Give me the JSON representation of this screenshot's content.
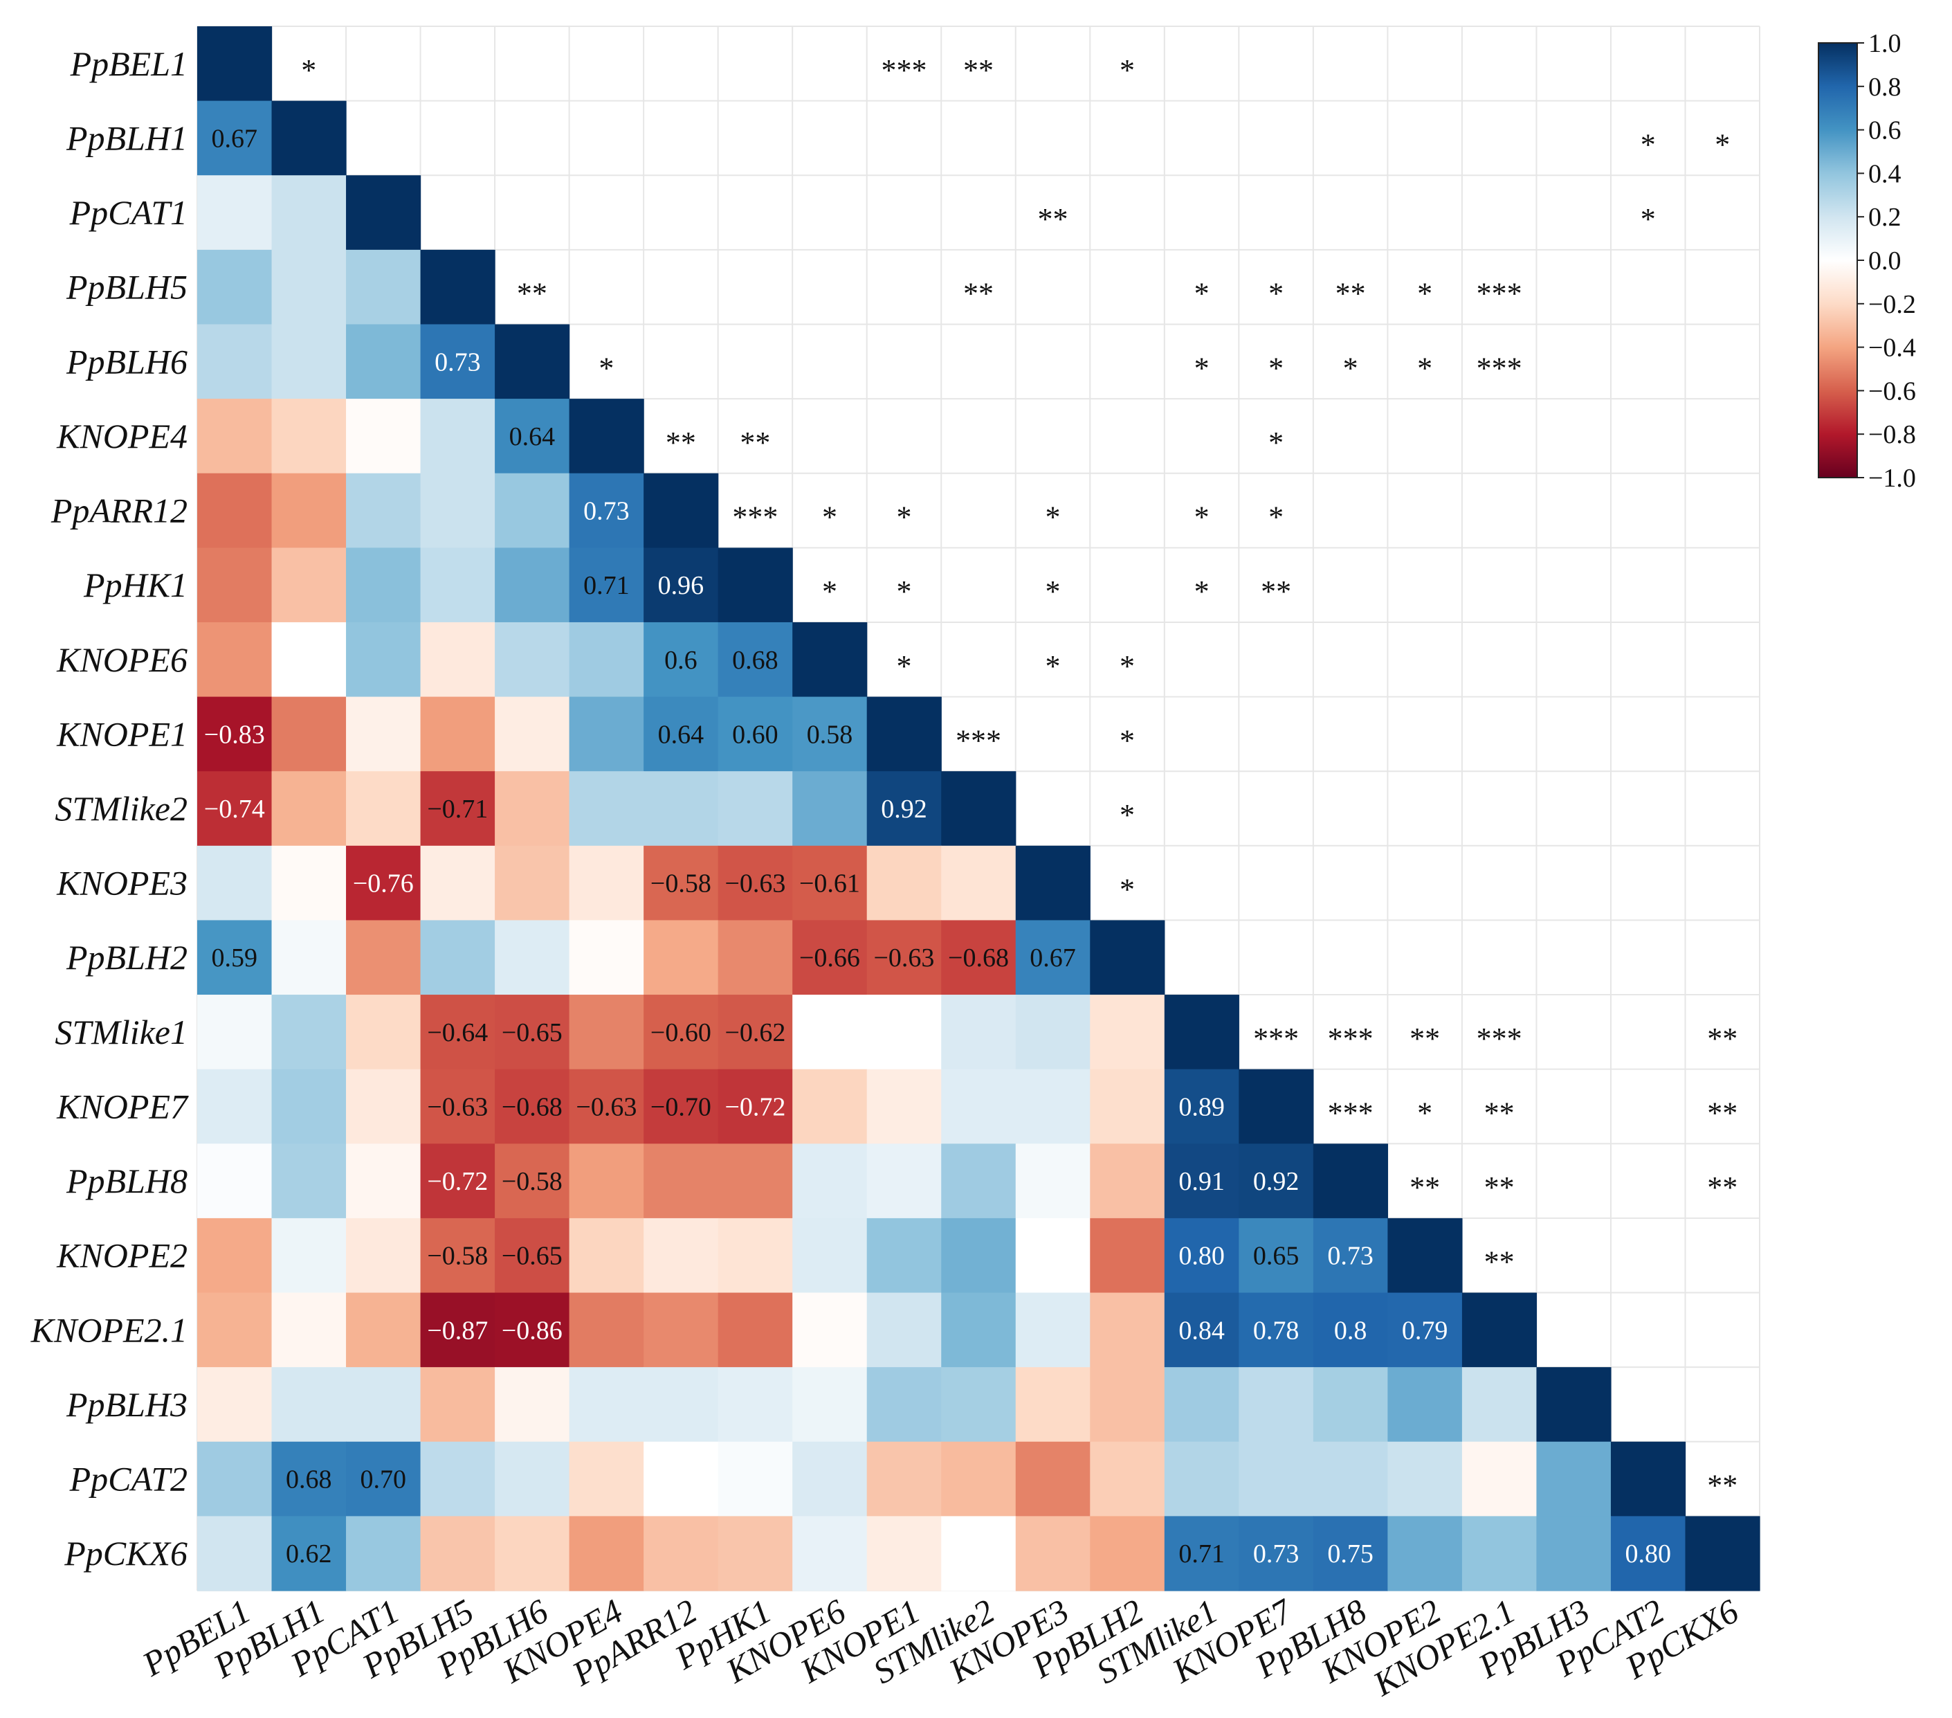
{
  "chart_data": {
    "type": "heatmap",
    "title": "",
    "xlabel": "",
    "ylabel": "",
    "labels": [
      "PpBEL1",
      "PpBLH1",
      "PpCAT1",
      "PpBLH5",
      "PpBLH6",
      "KNOPE4",
      "PpARR12",
      "PpHK1",
      "KNOPE6",
      "KNOPE1",
      "STMlike2",
      "KNOPE3",
      "PpBLH2",
      "STMlike1",
      "KNOPE7",
      "PpBLH8",
      "KNOPE2",
      "KNOPE2.1",
      "PpBLH3",
      "PpCAT2",
      "PpCKX6"
    ],
    "lower_triangle_values": [
      [
        1
      ],
      [
        0.67,
        1
      ],
      [
        0.12,
        0.22,
        1
      ],
      [
        0.38,
        0.22,
        0.33,
        1
      ],
      [
        0.28,
        0.22,
        0.45,
        0.73,
        1
      ],
      [
        -0.32,
        -0.22,
        -0.02,
        0.22,
        0.64,
        1
      ],
      [
        -0.55,
        -0.42,
        0.3,
        0.22,
        0.38,
        0.73,
        1
      ],
      [
        -0.52,
        -0.3,
        0.42,
        0.25,
        0.5,
        0.71,
        0.96,
        1
      ],
      [
        -0.45,
        0.0,
        0.4,
        -0.12,
        0.28,
        0.36,
        0.6,
        0.68,
        1
      ],
      [
        -0.83,
        -0.52,
        -0.08,
        -0.42,
        -0.1,
        0.5,
        0.64,
        0.6,
        0.58,
        1
      ],
      [
        -0.74,
        -0.35,
        -0.2,
        -0.71,
        -0.3,
        0.3,
        0.3,
        0.28,
        0.5,
        0.92,
        1
      ],
      [
        0.18,
        -0.03,
        -0.76,
        -0.1,
        -0.28,
        -0.12,
        -0.58,
        -0.63,
        -0.61,
        -0.22,
        -0.15,
        1
      ],
      [
        0.59,
        0.05,
        -0.46,
        0.35,
        0.15,
        -0.02,
        -0.38,
        -0.48,
        -0.66,
        -0.63,
        -0.68,
        0.67,
        1
      ],
      [
        0.05,
        0.32,
        -0.2,
        -0.64,
        -0.65,
        -0.5,
        -0.6,
        -0.62,
        0.0,
        0.0,
        0.16,
        0.2,
        -0.15,
        1
      ],
      [
        0.15,
        0.35,
        -0.12,
        -0.63,
        -0.68,
        -0.63,
        -0.7,
        -0.72,
        -0.22,
        -0.1,
        0.14,
        0.14,
        -0.18,
        0.89,
        1
      ],
      [
        0.02,
        0.33,
        -0.05,
        -0.72,
        -0.58,
        -0.42,
        -0.5,
        -0.5,
        0.14,
        0.1,
        0.36,
        0.05,
        -0.3,
        0.91,
        0.92,
        1
      ],
      [
        -0.38,
        0.08,
        -0.12,
        -0.58,
        -0.65,
        -0.22,
        -0.12,
        -0.15,
        0.15,
        0.4,
        0.48,
        0.0,
        -0.55,
        0.8,
        0.65,
        0.73,
        1
      ],
      [
        -0.35,
        -0.05,
        -0.35,
        -0.87,
        -0.86,
        -0.52,
        -0.48,
        -0.55,
        -0.02,
        0.2,
        0.45,
        0.15,
        -0.3,
        0.84,
        0.78,
        0.8,
        0.79,
        1
      ],
      [
        -0.1,
        0.18,
        0.18,
        -0.32,
        -0.06,
        0.15,
        0.15,
        0.12,
        0.08,
        0.36,
        0.34,
        -0.2,
        -0.3,
        0.36,
        0.26,
        0.34,
        0.5,
        0.22,
        1
      ],
      [
        0.36,
        0.68,
        0.7,
        0.26,
        0.18,
        -0.18,
        0.0,
        0.03,
        0.16,
        -0.28,
        -0.32,
        -0.5,
        -0.25,
        0.3,
        0.26,
        0.26,
        0.22,
        -0.05,
        0.5,
        1
      ],
      [
        0.2,
        0.62,
        0.38,
        -0.28,
        -0.22,
        -0.42,
        -0.3,
        -0.28,
        0.1,
        -0.1,
        0.0,
        -0.3,
        -0.38,
        0.71,
        0.73,
        0.75,
        0.5,
        0.4,
        0.5,
        0.8,
        1
      ]
    ],
    "shown_values": [
      {
        "r": 1,
        "c": 0,
        "t": "0.67"
      },
      {
        "r": 4,
        "c": 3,
        "t": "0.73"
      },
      {
        "r": 5,
        "c": 4,
        "t": "0.64"
      },
      {
        "r": 6,
        "c": 5,
        "t": "0.73"
      },
      {
        "r": 7,
        "c": 5,
        "t": "0.71"
      },
      {
        "r": 7,
        "c": 6,
        "t": "0.96"
      },
      {
        "r": 8,
        "c": 6,
        "t": "0.6"
      },
      {
        "r": 8,
        "c": 7,
        "t": "0.68"
      },
      {
        "r": 9,
        "c": 0,
        "t": "−0.83"
      },
      {
        "r": 9,
        "c": 6,
        "t": "0.64"
      },
      {
        "r": 9,
        "c": 7,
        "t": "0.60"
      },
      {
        "r": 9,
        "c": 8,
        "t": "0.58"
      },
      {
        "r": 10,
        "c": 0,
        "t": "−0.74"
      },
      {
        "r": 10,
        "c": 3,
        "t": "−0.71"
      },
      {
        "r": 10,
        "c": 9,
        "t": "0.92"
      },
      {
        "r": 11,
        "c": 2,
        "t": "−0.76"
      },
      {
        "r": 11,
        "c": 6,
        "t": "−0.58"
      },
      {
        "r": 11,
        "c": 7,
        "t": "−0.63"
      },
      {
        "r": 11,
        "c": 8,
        "t": "−0.61"
      },
      {
        "r": 12,
        "c": 0,
        "t": "0.59"
      },
      {
        "r": 12,
        "c": 8,
        "t": "−0.66"
      },
      {
        "r": 12,
        "c": 9,
        "t": "−0.63"
      },
      {
        "r": 12,
        "c": 10,
        "t": "−0.68"
      },
      {
        "r": 12,
        "c": 11,
        "t": "0.67"
      },
      {
        "r": 13,
        "c": 3,
        "t": "−0.64"
      },
      {
        "r": 13,
        "c": 4,
        "t": "−0.65"
      },
      {
        "r": 13,
        "c": 6,
        "t": "−0.60"
      },
      {
        "r": 13,
        "c": 7,
        "t": "−0.62"
      },
      {
        "r": 14,
        "c": 3,
        "t": "−0.63"
      },
      {
        "r": 14,
        "c": 4,
        "t": "−0.68"
      },
      {
        "r": 14,
        "c": 5,
        "t": "−0.63"
      },
      {
        "r": 14,
        "c": 6,
        "t": "−0.70"
      },
      {
        "r": 14,
        "c": 7,
        "t": "−0.72"
      },
      {
        "r": 14,
        "c": 13,
        "t": "0.89"
      },
      {
        "r": 15,
        "c": 3,
        "t": "−0.72"
      },
      {
        "r": 15,
        "c": 4,
        "t": "−0.58"
      },
      {
        "r": 15,
        "c": 13,
        "t": "0.91"
      },
      {
        "r": 15,
        "c": 14,
        "t": "0.92"
      },
      {
        "r": 16,
        "c": 3,
        "t": "−0.58"
      },
      {
        "r": 16,
        "c": 4,
        "t": "−0.65"
      },
      {
        "r": 16,
        "c": 13,
        "t": "0.80"
      },
      {
        "r": 16,
        "c": 14,
        "t": "0.65"
      },
      {
        "r": 16,
        "c": 15,
        "t": "0.73"
      },
      {
        "r": 17,
        "c": 3,
        "t": "−0.87"
      },
      {
        "r": 17,
        "c": 4,
        "t": "−0.86"
      },
      {
        "r": 17,
        "c": 13,
        "t": "0.84"
      },
      {
        "r": 17,
        "c": 14,
        "t": "0.78"
      },
      {
        "r": 17,
        "c": 15,
        "t": "0.8"
      },
      {
        "r": 17,
        "c": 16,
        "t": "0.79"
      },
      {
        "r": 19,
        "c": 1,
        "t": "0.68"
      },
      {
        "r": 19,
        "c": 2,
        "t": "0.70"
      },
      {
        "r": 20,
        "c": 1,
        "t": "0.62"
      },
      {
        "r": 20,
        "c": 13,
        "t": "0.71"
      },
      {
        "r": 20,
        "c": 14,
        "t": "0.73"
      },
      {
        "r": 20,
        "c": 15,
        "t": "0.75"
      },
      {
        "r": 20,
        "c": 19,
        "t": "0.80"
      }
    ],
    "significance": [
      {
        "r": 0,
        "c": 1,
        "s": "*"
      },
      {
        "r": 0,
        "c": 9,
        "s": "***"
      },
      {
        "r": 0,
        "c": 10,
        "s": "**"
      },
      {
        "r": 0,
        "c": 12,
        "s": "*"
      },
      {
        "r": 1,
        "c": 19,
        "s": "*"
      },
      {
        "r": 1,
        "c": 20,
        "s": "*"
      },
      {
        "r": 2,
        "c": 11,
        "s": "**"
      },
      {
        "r": 2,
        "c": 19,
        "s": "*"
      },
      {
        "r": 3,
        "c": 4,
        "s": "**"
      },
      {
        "r": 3,
        "c": 10,
        "s": "**"
      },
      {
        "r": 3,
        "c": 13,
        "s": "*"
      },
      {
        "r": 3,
        "c": 14,
        "s": "*"
      },
      {
        "r": 3,
        "c": 15,
        "s": "**"
      },
      {
        "r": 3,
        "c": 16,
        "s": "*"
      },
      {
        "r": 3,
        "c": 17,
        "s": "***"
      },
      {
        "r": 4,
        "c": 5,
        "s": "*"
      },
      {
        "r": 4,
        "c": 13,
        "s": "*"
      },
      {
        "r": 4,
        "c": 14,
        "s": "*"
      },
      {
        "r": 4,
        "c": 15,
        "s": "*"
      },
      {
        "r": 4,
        "c": 16,
        "s": "*"
      },
      {
        "r": 4,
        "c": 17,
        "s": "***"
      },
      {
        "r": 5,
        "c": 6,
        "s": "**"
      },
      {
        "r": 5,
        "c": 7,
        "s": "**"
      },
      {
        "r": 5,
        "c": 14,
        "s": "*"
      },
      {
        "r": 6,
        "c": 7,
        "s": "***"
      },
      {
        "r": 6,
        "c": 8,
        "s": "*"
      },
      {
        "r": 6,
        "c": 9,
        "s": "*"
      },
      {
        "r": 6,
        "c": 11,
        "s": "*"
      },
      {
        "r": 6,
        "c": 13,
        "s": "*"
      },
      {
        "r": 6,
        "c": 14,
        "s": "*"
      },
      {
        "r": 7,
        "c": 8,
        "s": "*"
      },
      {
        "r": 7,
        "c": 9,
        "s": "*"
      },
      {
        "r": 7,
        "c": 11,
        "s": "*"
      },
      {
        "r": 7,
        "c": 13,
        "s": "*"
      },
      {
        "r": 7,
        "c": 14,
        "s": "**"
      },
      {
        "r": 8,
        "c": 9,
        "s": "*"
      },
      {
        "r": 8,
        "c": 11,
        "s": "*"
      },
      {
        "r": 8,
        "c": 12,
        "s": "*"
      },
      {
        "r": 9,
        "c": 10,
        "s": "***"
      },
      {
        "r": 9,
        "c": 12,
        "s": "*"
      },
      {
        "r": 10,
        "c": 12,
        "s": "*"
      },
      {
        "r": 11,
        "c": 12,
        "s": "*"
      },
      {
        "r": 13,
        "c": 14,
        "s": "***"
      },
      {
        "r": 13,
        "c": 15,
        "s": "***"
      },
      {
        "r": 13,
        "c": 16,
        "s": "**"
      },
      {
        "r": 13,
        "c": 17,
        "s": "***"
      },
      {
        "r": 13,
        "c": 20,
        "s": "**"
      },
      {
        "r": 14,
        "c": 15,
        "s": "***"
      },
      {
        "r": 14,
        "c": 16,
        "s": "*"
      },
      {
        "r": 14,
        "c": 17,
        "s": "**"
      },
      {
        "r": 14,
        "c": 20,
        "s": "**"
      },
      {
        "r": 15,
        "c": 16,
        "s": "**"
      },
      {
        "r": 15,
        "c": 17,
        "s": "**"
      },
      {
        "r": 15,
        "c": 20,
        "s": "**"
      },
      {
        "r": 16,
        "c": 17,
        "s": "**"
      },
      {
        "r": 19,
        "c": 20,
        "s": "**"
      }
    ],
    "colorbar": {
      "range": [
        -1.0,
        1.0
      ],
      "ticks": [
        1.0,
        0.8,
        0.6,
        0.4,
        0.2,
        0.0,
        -0.2,
        -0.4,
        -0.6,
        -0.8,
        -1.0
      ],
      "tick_labels": [
        "1.0",
        "0.8",
        "0.6",
        "0.4",
        "0.2",
        "0.0",
        "−0.2",
        "−0.4",
        "−0.6",
        "−0.8",
        "−1.0"
      ],
      "placement": "top-right",
      "colors": {
        "neg_extreme": "#67001f",
        "neg_strong": "#b2182b",
        "neg_mid": "#d6604d",
        "neg_light": "#f4a582",
        "neg_pale": "#fddbc7",
        "neutral": "#ffffff",
        "pos_pale": "#d1e5f0",
        "pos_light": "#92c5de",
        "pos_mid": "#4393c3",
        "pos_strong": "#2166ac",
        "pos_extreme": "#053061"
      }
    },
    "grid": true,
    "grid_color": "#e6e6e6"
  }
}
